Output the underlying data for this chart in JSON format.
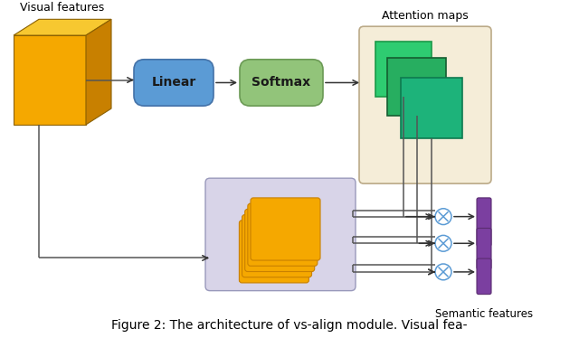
{
  "title": "Figure 2: The architecture of vs-align module. Visual fea-",
  "background": "#ffffff",
  "label_visual": "Visual features",
  "label_attention": "Attention maps",
  "label_semantic": "Semantic features",
  "label_linear": "Linear",
  "label_softmax": "Softmax",
  "cube_face": "#F5A800",
  "cube_top": "#F7C830",
  "cube_side": "#C88000",
  "cube_edge": "#8B6000",
  "linear_color": "#5B9BD5",
  "linear_edge": "#4472A8",
  "softmax_color": "#92C47A",
  "softmax_edge": "#6B9A55",
  "attn_bg": "#F5EDD8",
  "attn_bg_edge": "#BBAA88",
  "green1": "#2ECC71",
  "green1_edge": "#1A9948",
  "green2": "#27AE60",
  "green2_edge": "#145E30",
  "green3": "#1DB37A",
  "green3_edge": "#0E7A50",
  "stack_bg": "#D8D4E8",
  "stack_bg_edge": "#9999BB",
  "stack_color": "#F5A800",
  "stack_edge": "#C88000",
  "circle_color": "#5B9BD5",
  "semantic_color": "#7B3FA0",
  "semantic_edge": "#5A2D70",
  "arrow_color": "#333333",
  "line_color": "#555555",
  "text_color": "#222222",
  "label_color": "#000000"
}
